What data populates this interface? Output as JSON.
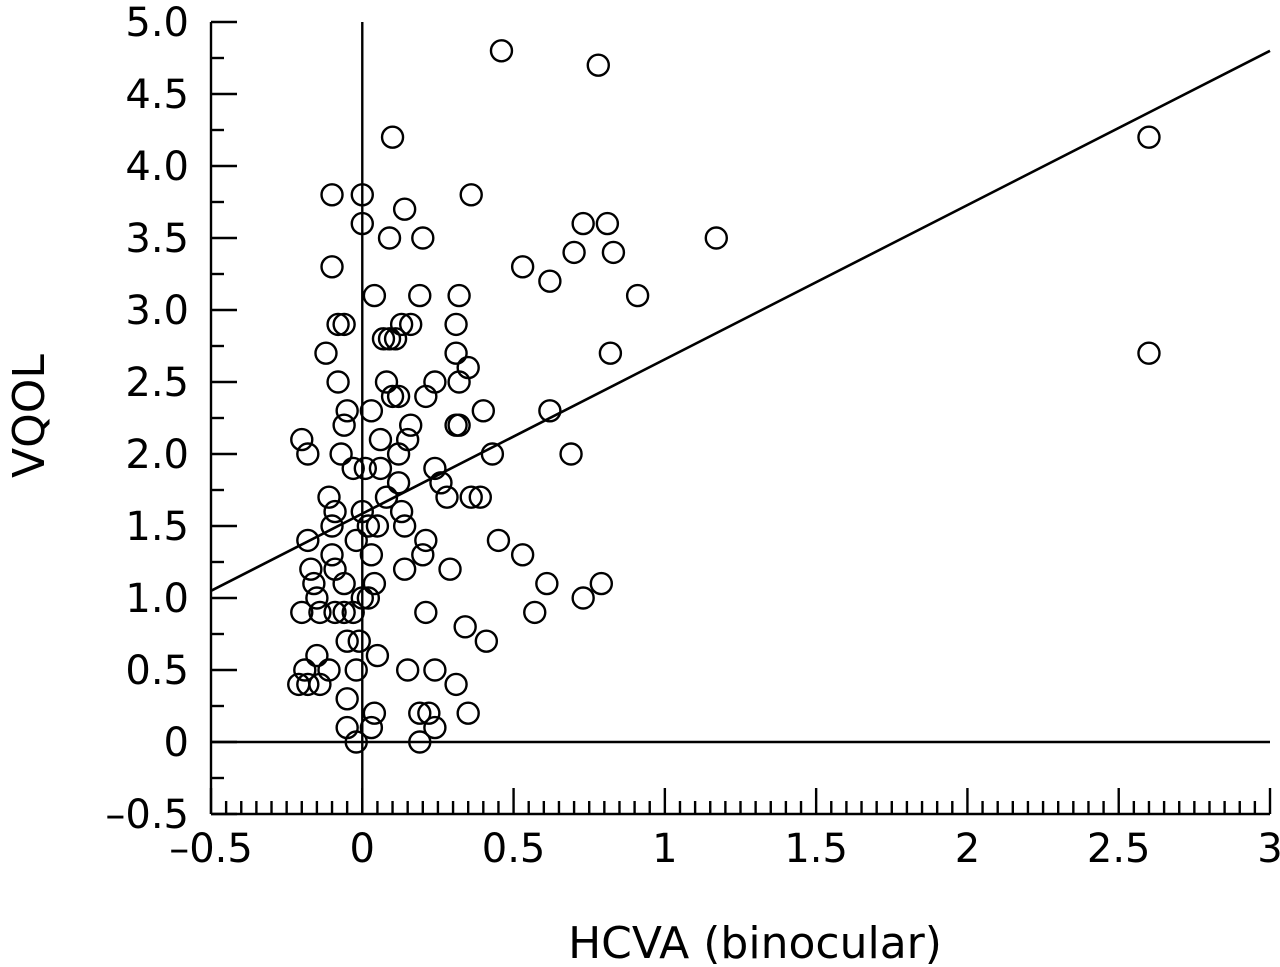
{
  "chart_data": {
    "type": "scatter",
    "title": "",
    "xlabel": "HCVA (binocular)",
    "ylabel": "VQOL",
    "xlim": [
      -0.5,
      3
    ],
    "ylim": [
      -0.5,
      5
    ],
    "xticks": [
      -0.5,
      0,
      0.5,
      1,
      1.5,
      2,
      2.5,
      3
    ],
    "xtick_labels": [
      "–0.5",
      "0",
      "0.5",
      "1",
      "1.5",
      "2",
      "2.5",
      "3"
    ],
    "yticks": [
      -0.5,
      0,
      0.5,
      1,
      1.5,
      2,
      2.5,
      3,
      3.5,
      4,
      4.5,
      5
    ],
    "ytick_labels": [
      "–0.5",
      "0",
      "0.5",
      "1.0",
      "1.5",
      "2.0",
      "2.5",
      "3.0",
      "3.5",
      "4.0",
      "4.5",
      "5.0"
    ],
    "reference_lines": {
      "x": 0,
      "y": 0
    },
    "fit_line": {
      "x": [
        -0.5,
        3
      ],
      "y": [
        1.05,
        4.8
      ]
    },
    "grid": false,
    "legend": "none",
    "points": [
      [
        0.46,
        4.8
      ],
      [
        0.78,
        4.7
      ],
      [
        2.6,
        4.2
      ],
      [
        0.1,
        4.2
      ],
      [
        -0.1,
        3.8
      ],
      [
        0.0,
        3.8
      ],
      [
        0.36,
        3.8
      ],
      [
        0.14,
        3.7
      ],
      [
        0.0,
        3.6
      ],
      [
        0.73,
        3.6
      ],
      [
        0.81,
        3.6
      ],
      [
        0.09,
        3.5
      ],
      [
        0.2,
        3.5
      ],
      [
        1.17,
        3.5
      ],
      [
        0.7,
        3.4
      ],
      [
        0.83,
        3.4
      ],
      [
        -0.1,
        3.3
      ],
      [
        0.53,
        3.3
      ],
      [
        0.62,
        3.2
      ],
      [
        0.04,
        3.1
      ],
      [
        0.19,
        3.1
      ],
      [
        0.32,
        3.1
      ],
      [
        0.91,
        3.1
      ],
      [
        -0.08,
        2.9
      ],
      [
        -0.06,
        2.9
      ],
      [
        0.13,
        2.9
      ],
      [
        0.16,
        2.9
      ],
      [
        0.31,
        2.9
      ],
      [
        0.07,
        2.8
      ],
      [
        0.09,
        2.8
      ],
      [
        0.11,
        2.8
      ],
      [
        -0.12,
        2.7
      ],
      [
        0.31,
        2.7
      ],
      [
        0.82,
        2.7
      ],
      [
        2.6,
        2.7
      ],
      [
        0.35,
        2.6
      ],
      [
        -0.08,
        2.5
      ],
      [
        0.08,
        2.5
      ],
      [
        0.24,
        2.5
      ],
      [
        0.32,
        2.5
      ],
      [
        0.1,
        2.4
      ],
      [
        0.12,
        2.4
      ],
      [
        0.21,
        2.4
      ],
      [
        -0.05,
        2.3
      ],
      [
        0.03,
        2.3
      ],
      [
        0.4,
        2.3
      ],
      [
        0.62,
        2.3
      ],
      [
        -0.06,
        2.2
      ],
      [
        0.16,
        2.2
      ],
      [
        0.31,
        2.2
      ],
      [
        0.32,
        2.2
      ],
      [
        -0.2,
        2.1
      ],
      [
        0.06,
        2.1
      ],
      [
        0.15,
        2.1
      ],
      [
        -0.18,
        2.0
      ],
      [
        -0.07,
        2.0
      ],
      [
        0.12,
        2.0
      ],
      [
        0.43,
        2.0
      ],
      [
        0.69,
        2.0
      ],
      [
        -0.03,
        1.9
      ],
      [
        0.01,
        1.9
      ],
      [
        0.06,
        1.9
      ],
      [
        0.24,
        1.9
      ],
      [
        0.26,
        1.8
      ],
      [
        0.12,
        1.8
      ],
      [
        -0.11,
        1.7
      ],
      [
        0.08,
        1.7
      ],
      [
        0.28,
        1.7
      ],
      [
        0.36,
        1.7
      ],
      [
        0.39,
        1.7
      ],
      [
        -0.09,
        1.6
      ],
      [
        0.0,
        1.6
      ],
      [
        0.13,
        1.6
      ],
      [
        -0.1,
        1.5
      ],
      [
        0.02,
        1.5
      ],
      [
        0.05,
        1.5
      ],
      [
        0.14,
        1.5
      ],
      [
        -0.18,
        1.4
      ],
      [
        -0.02,
        1.4
      ],
      [
        0.21,
        1.4
      ],
      [
        0.45,
        1.4
      ],
      [
        -0.1,
        1.3
      ],
      [
        0.03,
        1.3
      ],
      [
        0.2,
        1.3
      ],
      [
        0.53,
        1.3
      ],
      [
        -0.17,
        1.2
      ],
      [
        -0.09,
        1.2
      ],
      [
        0.14,
        1.2
      ],
      [
        0.29,
        1.2
      ],
      [
        -0.16,
        1.1
      ],
      [
        -0.06,
        1.1
      ],
      [
        0.04,
        1.1
      ],
      [
        0.61,
        1.1
      ],
      [
        0.79,
        1.1
      ],
      [
        -0.15,
        1.0
      ],
      [
        0.0,
        1.0
      ],
      [
        0.02,
        1.0
      ],
      [
        0.73,
        1.0
      ],
      [
        -0.2,
        0.9
      ],
      [
        -0.14,
        0.9
      ],
      [
        -0.09,
        0.9
      ],
      [
        -0.06,
        0.9
      ],
      [
        -0.03,
        0.9
      ],
      [
        0.21,
        0.9
      ],
      [
        0.57,
        0.9
      ],
      [
        0.34,
        0.8
      ],
      [
        -0.05,
        0.7
      ],
      [
        -0.01,
        0.7
      ],
      [
        0.41,
        0.7
      ],
      [
        -0.15,
        0.6
      ],
      [
        0.05,
        0.6
      ],
      [
        -0.19,
        0.5
      ],
      [
        -0.11,
        0.5
      ],
      [
        -0.02,
        0.5
      ],
      [
        0.15,
        0.5
      ],
      [
        0.24,
        0.5
      ],
      [
        -0.21,
        0.4
      ],
      [
        -0.18,
        0.4
      ],
      [
        -0.14,
        0.4
      ],
      [
        0.31,
        0.4
      ],
      [
        -0.05,
        0.3
      ],
      [
        0.04,
        0.2
      ],
      [
        0.19,
        0.2
      ],
      [
        0.22,
        0.2
      ],
      [
        0.35,
        0.2
      ],
      [
        -0.05,
        0.1
      ],
      [
        0.03,
        0.1
      ],
      [
        0.24,
        0.1
      ],
      [
        -0.02,
        0.0
      ],
      [
        0.19,
        0.0
      ]
    ]
  }
}
